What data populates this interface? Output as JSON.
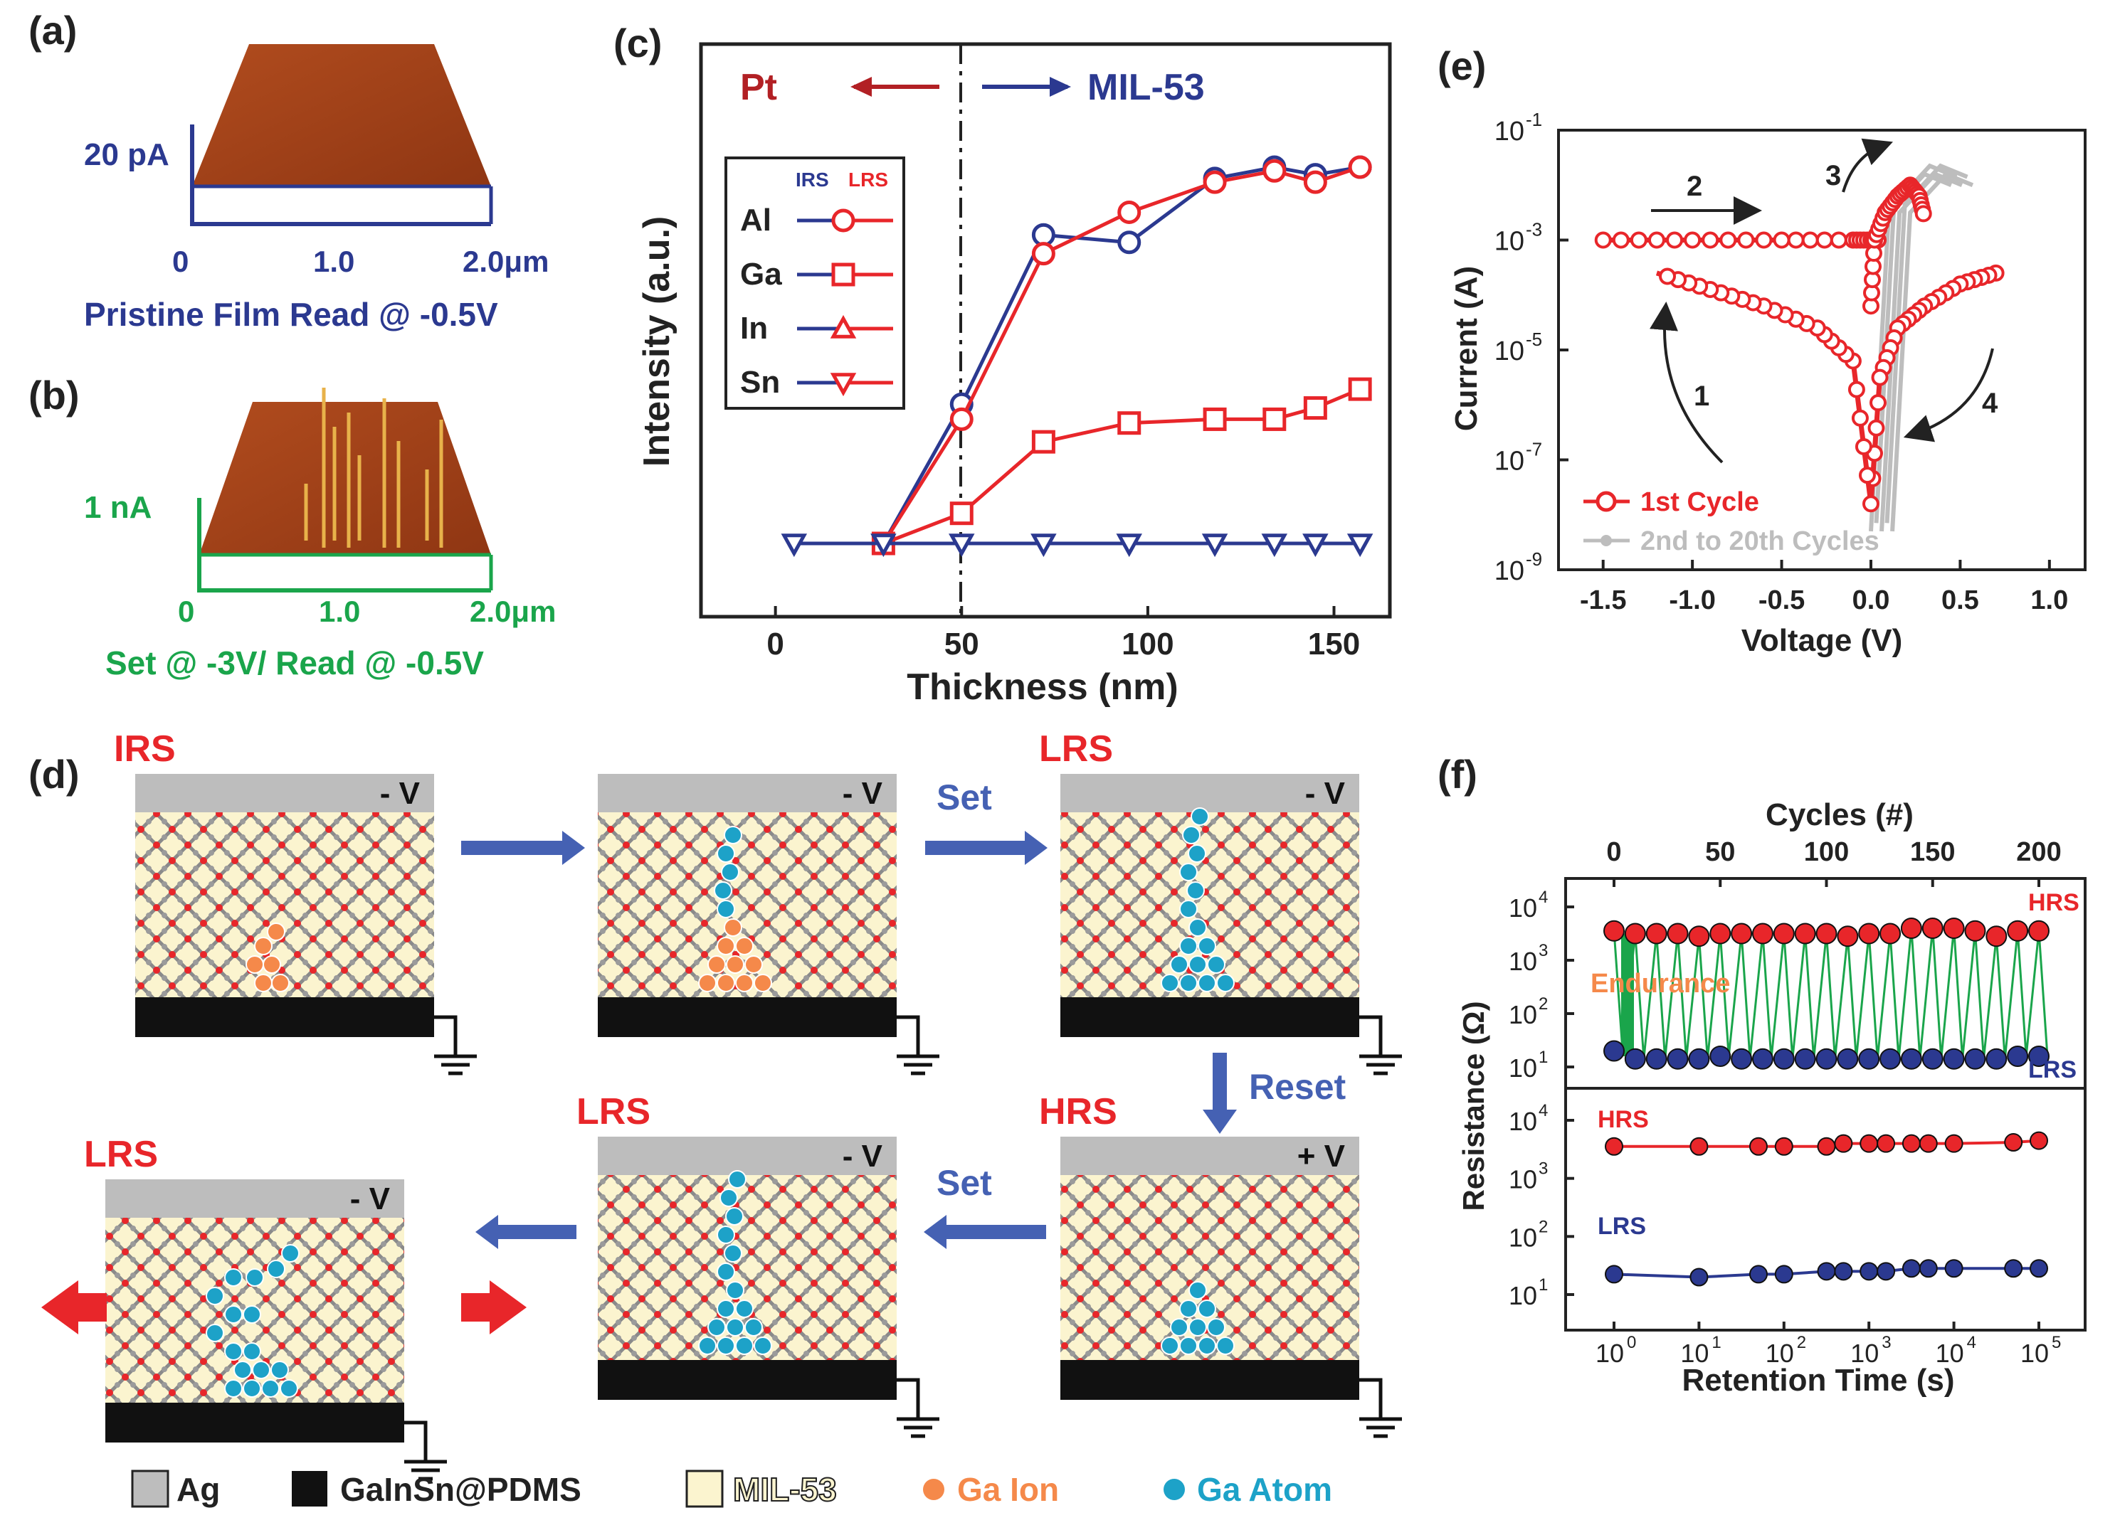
{
  "panels": {
    "a": {
      "letter": "(a)",
      "scale_label": "20 pA",
      "ticks": [
        "0",
        "1.0",
        "2.0μm"
      ],
      "caption": "Pristine Film Read @ -0.5V"
    },
    "b": {
      "letter": "(b)",
      "scale_label": "1 nA",
      "ticks": [
        "0",
        "1.0",
        "2.0μm"
      ],
      "caption": "Set @ -3V/ Read @ -0.5V"
    },
    "c": {
      "letter": "(c)",
      "arrow_left": "Pt",
      "arrow_right": "MIL-53"
    },
    "d": {
      "letter": "(d)",
      "cells": [
        {
          "state": "IRS",
          "bias": "- V",
          "arrow_label": ""
        },
        {
          "state": "",
          "bias": "- V",
          "arrow_label": "Set"
        },
        {
          "state": "LRS",
          "bias": "- V",
          "arrow_label": "Reset"
        },
        {
          "state": "HRS",
          "bias": "+ V",
          "arrow_label": "Set"
        },
        {
          "state": "LRS",
          "bias": "- V",
          "arrow_label": ""
        },
        {
          "state": "LRS",
          "bias": "- V",
          "arrow_label": ""
        }
      ],
      "legend": {
        "ag": "Ag",
        "galinsn": "GaInSn@PDMS",
        "mil53": "MIL-53",
        "ga_ion": "Ga Ion",
        "ga_atom": "Ga Atom"
      }
    },
    "e": {
      "letter": "(e)",
      "step_labels": [
        "1",
        "2",
        "3",
        "4"
      ]
    },
    "f": {
      "letter": "(f)",
      "endurance_label": "Endurance"
    }
  },
  "colors": {
    "red": "#e8262a",
    "blue": "#2b3990",
    "green": "#1aa54b",
    "gray": "#bdbdbd",
    "film": "#a4421a",
    "cream": "#fbf4cf",
    "orange": "#f5894a",
    "cyan": "#1da2c8"
  },
  "chart_data": [
    {
      "id": "c",
      "type": "line",
      "xlabel": "Thickness (nm)",
      "ylabel": "Intensity (a.u.)",
      "xlim": [
        -20,
        165
      ],
      "xticks": [
        0,
        50,
        100,
        150
      ],
      "ylim": [
        0,
        1
      ],
      "divider_x": 50,
      "legend": {
        "col_irs": "IRS",
        "col_lrs": "LRS",
        "entries": [
          "Al",
          "Ga",
          "In",
          "Sn"
        ]
      },
      "series": [
        {
          "name": "Al IRS",
          "color": "blue",
          "marker": "circle",
          "x": [
            29,
            50,
            72,
            95,
            118,
            134,
            145,
            157
          ],
          "y": [
            0.0,
            0.37,
            0.82,
            0.8,
            0.97,
            1.0,
            0.98,
            1.0
          ]
        },
        {
          "name": "Al LRS",
          "color": "red",
          "marker": "circle",
          "x": [
            29,
            50,
            72,
            95,
            118,
            134,
            145,
            157
          ],
          "y": [
            0.0,
            0.33,
            0.77,
            0.88,
            0.96,
            0.99,
            0.96,
            1.0
          ]
        },
        {
          "name": "Ga LRS",
          "color": "red",
          "marker": "square",
          "x": [
            29,
            50,
            72,
            95,
            118,
            134,
            145,
            157
          ],
          "y": [
            0.0,
            0.08,
            0.27,
            0.32,
            0.33,
            0.33,
            0.36,
            0.41
          ]
        },
        {
          "name": "In/Sn IRS",
          "color": "blue",
          "marker": "triangle-down",
          "x": [
            5,
            29,
            50,
            72,
            95,
            118,
            134,
            145,
            157
          ],
          "y": [
            0,
            0,
            0,
            0,
            0,
            0,
            0,
            0,
            0
          ]
        }
      ]
    },
    {
      "id": "e",
      "type": "line",
      "xlabel": "Voltage (V)",
      "ylabel": "Current (A)",
      "xlim": [
        -1.75,
        1.2
      ],
      "xticks": [
        -1.5,
        -1.0,
        -0.5,
        0.0,
        0.5,
        1.0
      ],
      "ylim_log10": [
        -9,
        -1
      ],
      "yticks_log10": [
        -9,
        -7,
        -5,
        -3,
        -1
      ],
      "legend": [
        "1st Cycle",
        "2nd to 20th Cycles"
      ],
      "series": [
        {
          "name": "1st Cycle (set branch)",
          "color": "red",
          "V": [
            -1.5,
            -1.0,
            -0.5,
            -0.1,
            0.0,
            0.05
          ],
          "log10I": [
            -3.0,
            -3.0,
            -3.0,
            -3.0,
            -3.0,
            -3.0
          ]
        },
        {
          "name": "1st Cycle (switch)",
          "color": "red",
          "V": [
            0.0,
            0.02,
            0.08,
            0.15,
            0.22,
            0.27,
            0.3
          ],
          "log10I": [
            -4.2,
            -3.0,
            -2.5,
            -2.2,
            -2.0,
            -2.2,
            -2.6
          ]
        },
        {
          "name": "1st Cycle (reset branch)",
          "color": "red",
          "V": [
            0.7,
            0.5,
            0.3,
            0.15,
            0.05,
            0.0
          ],
          "log10I": [
            -3.6,
            -3.8,
            -4.2,
            -4.6,
            -5.5,
            -7.8
          ]
        },
        {
          "name": "1st Cycle (return)",
          "color": "red",
          "V": [
            0.0,
            -0.1,
            -0.3,
            -0.6,
            -0.9,
            -1.2
          ],
          "log10I": [
            -7.8,
            -5.2,
            -4.6,
            -4.2,
            -3.9,
            -3.6
          ]
        },
        {
          "name": "2nd to 20th Cycles",
          "color": "gray",
          "V": [
            0.0,
            0.1,
            0.3,
            0.45
          ],
          "log10I": [
            -8.3,
            -2.5,
            -1.8,
            -2.0
          ]
        }
      ]
    },
    {
      "id": "f-top",
      "type": "scatter",
      "xlabel_top": "Cycles (#)",
      "xticks": [
        0,
        50,
        100,
        150,
        200
      ],
      "ylabel": "Resistance (Ω)",
      "yticks_log10": [
        1,
        2,
        3,
        4
      ],
      "series": [
        {
          "name": "HRS",
          "color": "red",
          "x": [
            0,
            10,
            20,
            30,
            40,
            50,
            60,
            70,
            80,
            90,
            100,
            110,
            120,
            130,
            140,
            150,
            160,
            170,
            180,
            190,
            200
          ],
          "log10R": [
            3.55,
            3.5,
            3.5,
            3.5,
            3.45,
            3.5,
            3.5,
            3.5,
            3.5,
            3.5,
            3.5,
            3.45,
            3.5,
            3.5,
            3.6,
            3.6,
            3.6,
            3.55,
            3.45,
            3.55,
            3.55
          ]
        },
        {
          "name": "LRS",
          "color": "blue",
          "x": [
            0,
            10,
            20,
            30,
            40,
            50,
            60,
            70,
            80,
            90,
            100,
            110,
            120,
            130,
            140,
            150,
            160,
            170,
            180,
            190,
            200
          ],
          "log10R": [
            1.3,
            1.15,
            1.15,
            1.15,
            1.15,
            1.2,
            1.15,
            1.15,
            1.15,
            1.15,
            1.15,
            1.15,
            1.15,
            1.15,
            1.15,
            1.15,
            1.15,
            1.15,
            1.15,
            1.2,
            1.2
          ]
        }
      ]
    },
    {
      "id": "f-bottom",
      "type": "line",
      "xlabel": "Retention Time (s)",
      "xticks_log10": [
        0,
        1,
        2,
        3,
        4,
        5
      ],
      "ylabel": "Resistance (Ω)",
      "yticks_log10": [
        1,
        2,
        3,
        4
      ],
      "series": [
        {
          "name": "HRS",
          "color": "red",
          "log10t": [
            0,
            1,
            1.7,
            2,
            2.5,
            2.7,
            3,
            3.2,
            3.5,
            3.7,
            4,
            4.7,
            5
          ],
          "log10R": [
            3.55,
            3.55,
            3.55,
            3.55,
            3.55,
            3.6,
            3.6,
            3.6,
            3.6,
            3.6,
            3.6,
            3.62,
            3.65
          ]
        },
        {
          "name": "LRS",
          "color": "blue",
          "log10t": [
            0,
            1,
            1.7,
            2,
            2.5,
            2.7,
            3,
            3.2,
            3.5,
            3.7,
            4,
            4.7,
            5
          ],
          "log10R": [
            1.35,
            1.3,
            1.35,
            1.35,
            1.4,
            1.4,
            1.4,
            1.4,
            1.45,
            1.45,
            1.45,
            1.45,
            1.45
          ]
        }
      ]
    }
  ],
  "axes_text": {
    "c_xticks": [
      "0",
      "50",
      "100",
      "150"
    ],
    "e_xticks": [
      "-1.5",
      "-1.0",
      "-0.5",
      "0.0",
      "0.5",
      "1.0"
    ],
    "e_yticks_base": "10",
    "e_yticks_exp": [
      "-9",
      "-7",
      "-5",
      "-3",
      "-1"
    ],
    "f_cycle_ticks": [
      "0",
      "50",
      "100",
      "150",
      "200"
    ],
    "f_y_exp": [
      "4",
      "3",
      "2",
      "1"
    ],
    "f_time_exp": [
      "0",
      "1",
      "2",
      "3",
      "4",
      "5"
    ],
    "f_hrs": "HRS",
    "f_lrs": "LRS"
  }
}
